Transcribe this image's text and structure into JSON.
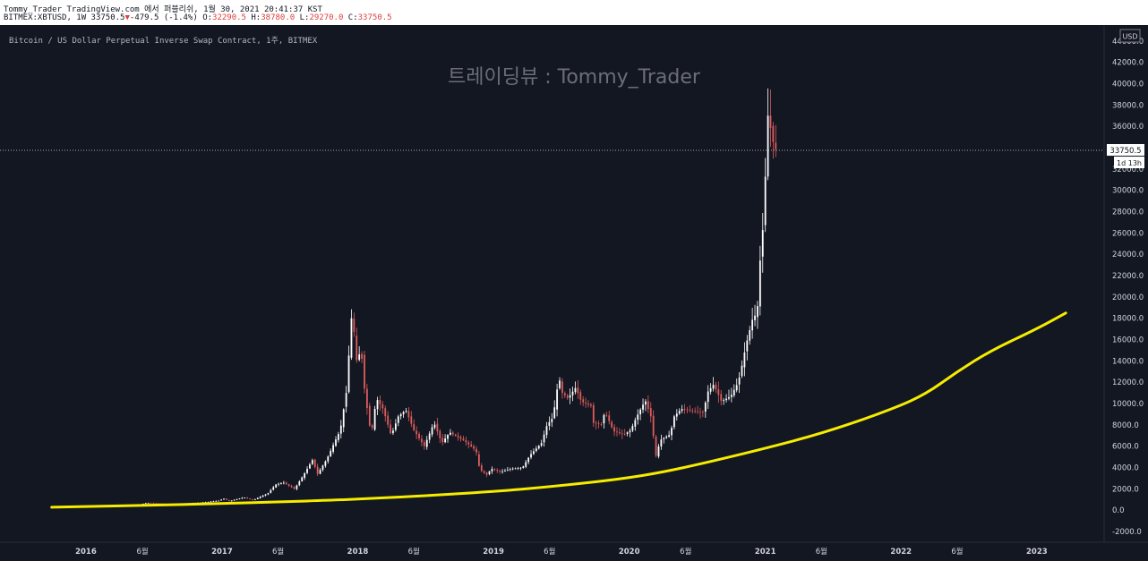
{
  "header": {
    "line1": "Tommy_Trader TradingView.com 에서 퍼블리쉬, 1월 30, 2021 20:41:37 KST",
    "symbol": "BITMEX:XBTUSD, 1W",
    "last": "33750.5",
    "change_arrow": "▼",
    "change": "-479.5 (-1.4%)",
    "open_label": "O:",
    "open": "32290.5",
    "high_label": "H:",
    "high": "38780.0",
    "low_label": "L:",
    "low": "29270.0",
    "close_label": "C:",
    "close": "33750.5"
  },
  "description": "Bitcoin / US Dollar Perpetual Inverse Swap Contract, 1주, BITMEX",
  "watermark": "트레이딩뷰 : Tommy_Trader",
  "price_tag": "33750.5",
  "countdown_tag": "1d 13h",
  "currency_label": "USD",
  "colors": {
    "background": "#131722",
    "up": "#ffffff",
    "down": "#e05c5c",
    "ma": "#f5ec00",
    "axis_text": "#d1d4dc"
  },
  "chart_data": {
    "type": "candlestick",
    "ylim": [
      -3000,
      45500
    ],
    "ytick_labels": [
      "-2000.0",
      "0.0",
      "2000.0",
      "4000.0",
      "6000.0",
      "8000.0",
      "10000.0",
      "12000.0",
      "14000.0",
      "16000.0",
      "18000.0",
      "20000.0",
      "22000.0",
      "24000.0",
      "26000.0",
      "28000.0",
      "30000.0",
      "32000.0",
      "34000.0",
      "36000.0",
      "38000.0",
      "40000.0",
      "42000.0",
      "44000.0"
    ],
    "ytick_values": [
      -2000,
      0,
      2000,
      4000,
      6000,
      8000,
      10000,
      12000,
      14000,
      16000,
      18000,
      20000,
      22000,
      24000,
      26000,
      28000,
      30000,
      32000,
      34000,
      36000,
      38000,
      40000,
      42000,
      44000
    ],
    "xtick_labels": [
      "2016",
      "6월",
      "2017",
      "6월",
      "2018",
      "6월",
      "2019",
      "6월",
      "2020",
      "6월",
      "2021",
      "6월",
      "2022",
      "6월",
      "2023"
    ],
    "xtick_dates": [
      "2016-01-01",
      "2016-06-01",
      "2017-01-01",
      "2017-06-01",
      "2018-01-01",
      "2018-06-01",
      "2019-01-01",
      "2019-06-01",
      "2020-01-01",
      "2020-06-01",
      "2021-01-01",
      "2021-06-01",
      "2022-01-01",
      "2022-06-01",
      "2023-01-01"
    ],
    "xlim": [
      "2015-05-15",
      "2023-07-01"
    ],
    "last_price": 33750.5,
    "price_anchors": [
      [
        "2015-09-25",
        230
      ],
      [
        "2015-11-06",
        380
      ],
      [
        "2015-12-18",
        440
      ],
      [
        "2016-03-01",
        420
      ],
      [
        "2016-05-15",
        450
      ],
      [
        "2016-06-15",
        700
      ],
      [
        "2016-08-15",
        580
      ],
      [
        "2016-11-01",
        700
      ],
      [
        "2016-12-25",
        900
      ],
      [
        "2017-01-05",
        1100
      ],
      [
        "2017-01-20",
        850
      ],
      [
        "2017-03-01",
        1200
      ],
      [
        "2017-03-25",
        950
      ],
      [
        "2017-05-05",
        1600
      ],
      [
        "2017-05-25",
        2400
      ],
      [
        "2017-06-15",
        2600
      ],
      [
        "2017-07-15",
        2000
      ],
      [
        "2017-08-10",
        3400
      ],
      [
        "2017-09-01",
        4700
      ],
      [
        "2017-09-15",
        3400
      ],
      [
        "2017-10-10",
        4800
      ],
      [
        "2017-11-01",
        6500
      ],
      [
        "2017-11-15",
        7500
      ],
      [
        "2017-12-01",
        11000
      ],
      [
        "2017-12-17",
        19000
      ],
      [
        "2017-12-28",
        14000
      ],
      [
        "2018-01-10",
        15000
      ],
      [
        "2018-01-20",
        11000
      ],
      [
        "2018-02-06",
        7000
      ],
      [
        "2018-02-20",
        10500
      ],
      [
        "2018-03-10",
        9500
      ],
      [
        "2018-04-01",
        7000
      ],
      [
        "2018-04-20",
        8800
      ],
      [
        "2018-05-10",
        9400
      ],
      [
        "2018-06-01",
        7500
      ],
      [
        "2018-06-29",
        6000
      ],
      [
        "2018-07-25",
        8200
      ],
      [
        "2018-08-15",
        6300
      ],
      [
        "2018-09-05",
        7300
      ],
      [
        "2018-10-15",
        6500
      ],
      [
        "2018-11-15",
        5600
      ],
      [
        "2018-11-25",
        3800
      ],
      [
        "2018-12-15",
        3300
      ],
      [
        "2018-12-25",
        3900
      ],
      [
        "2019-01-20",
        3600
      ],
      [
        "2019-02-20",
        3900
      ],
      [
        "2019-03-20",
        4000
      ],
      [
        "2019-04-10",
        5200
      ],
      [
        "2019-05-10",
        6300
      ],
      [
        "2019-05-25",
        8000
      ],
      [
        "2019-06-10",
        8700
      ],
      [
        "2019-06-26",
        12500
      ],
      [
        "2019-07-05",
        11000
      ],
      [
        "2019-07-20",
        10500
      ],
      [
        "2019-08-10",
        11500
      ],
      [
        "2019-08-25",
        10200
      ],
      [
        "2019-09-20",
        9800
      ],
      [
        "2019-09-26",
        8200
      ],
      [
        "2019-10-20",
        8000
      ],
      [
        "2019-10-27",
        9300
      ],
      [
        "2019-11-20",
        7400
      ],
      [
        "2019-12-18",
        7100
      ],
      [
        "2020-01-05",
        7500
      ],
      [
        "2020-01-20",
        8700
      ],
      [
        "2020-02-13",
        10300
      ],
      [
        "2020-03-01",
        8600
      ],
      [
        "2020-03-12",
        5000
      ],
      [
        "2020-03-25",
        6600
      ],
      [
        "2020-04-20",
        7100
      ],
      [
        "2020-05-01",
        8800
      ],
      [
        "2020-05-20",
        9500
      ],
      [
        "2020-06-20",
        9300
      ],
      [
        "2020-07-20",
        9200
      ],
      [
        "2020-07-28",
        11000
      ],
      [
        "2020-08-15",
        11800
      ],
      [
        "2020-09-05",
        10200
      ],
      [
        "2020-09-30",
        10700
      ],
      [
        "2020-10-20",
        12000
      ],
      [
        "2020-10-28",
        13200
      ],
      [
        "2020-11-10",
        15500
      ],
      [
        "2020-11-28",
        18000
      ],
      [
        "2020-12-10",
        18500
      ],
      [
        "2020-12-17",
        23000
      ],
      [
        "2020-12-28",
        27500
      ],
      [
        "2021-01-06",
        36000
      ],
      [
        "2021-01-10",
        38000
      ],
      [
        "2021-01-17",
        35000
      ],
      [
        "2021-01-30",
        33750.5
      ]
    ],
    "ma_series": {
      "name": "",
      "points": [
        [
          "2015-10-01",
          280
        ],
        [
          "2016-01-01",
          350
        ],
        [
          "2016-06-01",
          450
        ],
        [
          "2017-01-01",
          620
        ],
        [
          "2017-06-01",
          780
        ],
        [
          "2017-11-01",
          950
        ],
        [
          "2018-01-01",
          1050
        ],
        [
          "2018-06-01",
          1300
        ],
        [
          "2019-01-01",
          1750
        ],
        [
          "2019-06-01",
          2200
        ],
        [
          "2020-01-01",
          3000
        ],
        [
          "2020-06-01",
          4000
        ],
        [
          "2021-01-01",
          5800
        ],
        [
          "2021-06-01",
          7200
        ],
        [
          "2021-11-01",
          9000
        ],
        [
          "2022-03-01",
          10700
        ],
        [
          "2022-06-01",
          13000
        ],
        [
          "2022-09-01",
          15000
        ],
        [
          "2023-01-01",
          17000
        ],
        [
          "2023-03-20",
          18500
        ]
      ]
    }
  }
}
